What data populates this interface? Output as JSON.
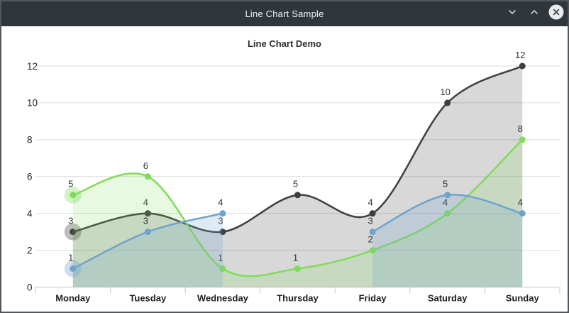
{
  "window": {
    "title": "Line Chart Sample",
    "controls": [
      {
        "name": "roll-down",
        "icon": "chevron-down-icon"
      },
      {
        "name": "roll-up",
        "icon": "chevron-up-icon"
      },
      {
        "name": "close",
        "icon": "close-x-icon"
      }
    ]
  },
  "colors": {
    "titlebar": "#2F373D",
    "window_border": "#51575D",
    "grid": "#DADDE0",
    "axis": "#C5C8CB",
    "black_series": "#3E3E3E",
    "green_series": "#80DB58",
    "blue_series": "#6FA3CD"
  },
  "chart_data": {
    "type": "line",
    "title": "Line Chart Demo",
    "categories": [
      "Monday",
      "Tuesday",
      "Wednesday",
      "Thursday",
      "Friday",
      "Saturday",
      "Sunday"
    ],
    "series": [
      {
        "name": "black",
        "color": "#3E3E3E",
        "fill_opacity": 0.2,
        "values": [
          3,
          4,
          3,
          5,
          4,
          10,
          12
        ]
      },
      {
        "name": "green",
        "color": "#80DB58",
        "fill_opacity": 0.18,
        "values": [
          5,
          6,
          1,
          1,
          2,
          4,
          8
        ]
      },
      {
        "name": "blue",
        "color": "#6FA3CD",
        "fill_opacity": 0.22,
        "values": [
          1,
          3,
          4,
          null,
          3,
          5,
          4
        ]
      }
    ],
    "point_labels": true,
    "first_point_halo": true,
    "xlabel": "",
    "ylabel": "",
    "ylim": [
      0,
      12
    ],
    "yticks": [
      0,
      2,
      4,
      6,
      8,
      10,
      12
    ],
    "grid": true,
    "legend_position": "none",
    "curve": "smooth-spline",
    "area_fill": true
  }
}
